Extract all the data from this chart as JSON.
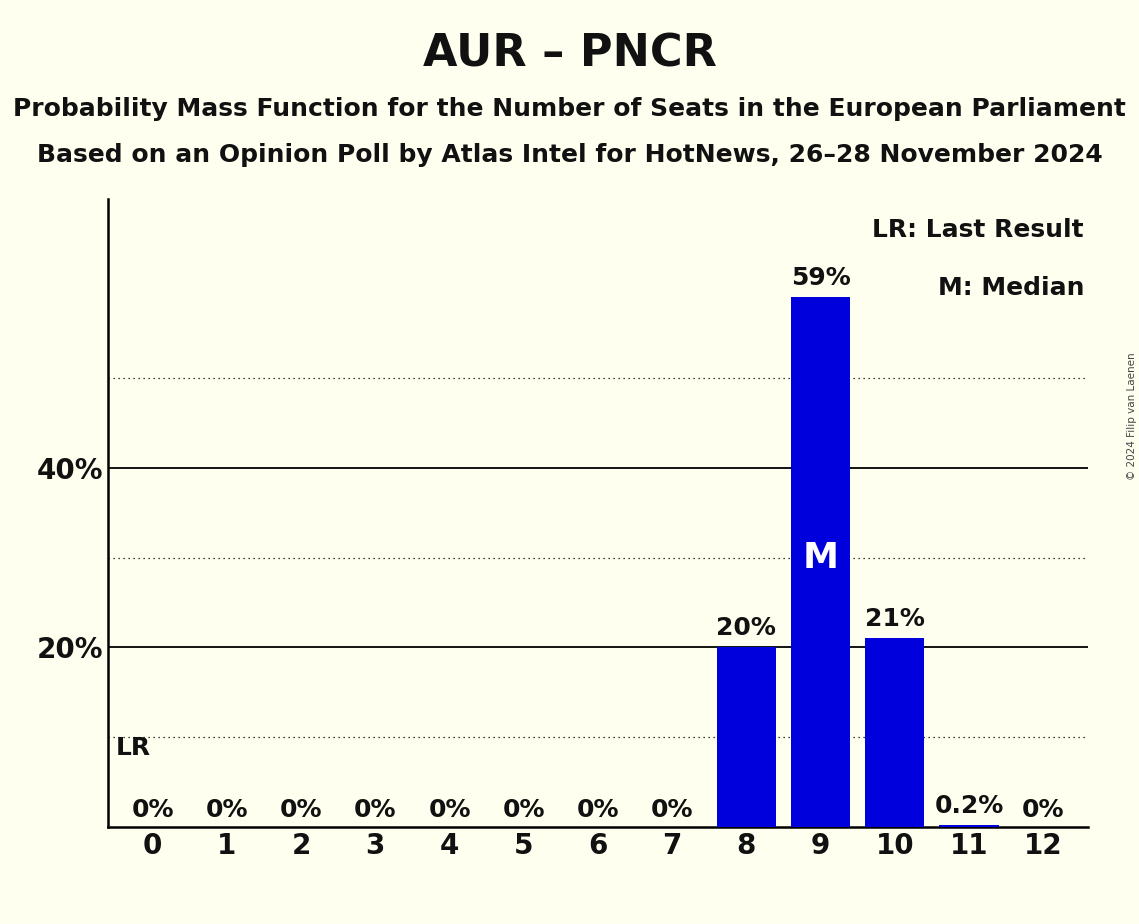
{
  "title": "AUR – PNCR",
  "subtitle1": "Probability Mass Function for the Number of Seats in the European Parliament",
  "subtitle2": "Based on an Opinion Poll by Atlas Intel for HotNews, 26–28 November 2024",
  "copyright": "© 2024 Filip van Laenen",
  "categories": [
    0,
    1,
    2,
    3,
    4,
    5,
    6,
    7,
    8,
    9,
    10,
    11,
    12
  ],
  "values": [
    0.0,
    0.0,
    0.0,
    0.0,
    0.0,
    0.0,
    0.0,
    0.0,
    0.2,
    0.59,
    0.21,
    0.002,
    0.0
  ],
  "bar_color": "#0000dd",
  "background_color": "#fffff0",
  "label_texts": [
    "0%",
    "0%",
    "0%",
    "0%",
    "0%",
    "0%",
    "0%",
    "0%",
    "20%",
    "59%",
    "21%",
    "0.2%",
    "0%"
  ],
  "median_seat": 9,
  "median_label": "M",
  "lr_seat": 8,
  "lr_label": "LR",
  "ylim": [
    0,
    0.7
  ],
  "yticks": [
    0.0,
    0.1,
    0.2,
    0.3,
    0.4,
    0.5,
    0.6
  ],
  "ytick_labels": [
    "",
    "",
    "20%",
    "",
    "40%",
    "",
    ""
  ],
  "solid_yticks": [
    0.2,
    0.4
  ],
  "dotted_yticks": [
    0.1,
    0.3,
    0.5
  ],
  "legend_lr": "LR: Last Result",
  "legend_m": "M: Median",
  "title_fontsize": 32,
  "subtitle_fontsize": 18,
  "tick_fontsize": 20,
  "bar_label_fontsize": 18,
  "median_label_fontsize": 26,
  "legend_fontsize": 18,
  "lr_label_fontsize": 18,
  "axis_label_color": "#111111"
}
